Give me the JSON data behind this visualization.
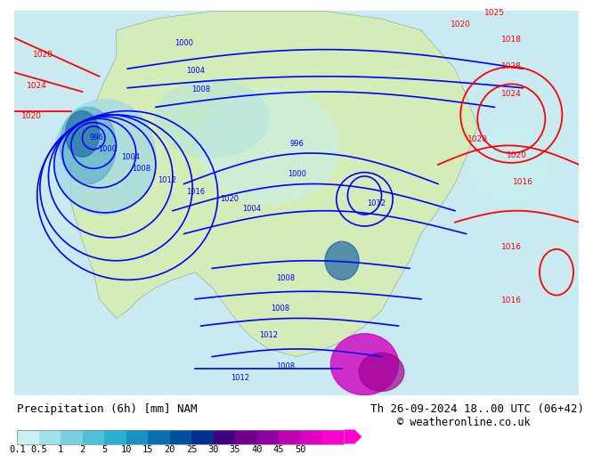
{
  "title_left": "Precipitation (6h) [mm] NAM",
  "title_right": "Th 26-09-2024 18..00 UTC (06+42)",
  "copyright": "© weatheronline.co.uk",
  "colorbar_levels": [
    0.1,
    0.5,
    1,
    2,
    5,
    10,
    15,
    20,
    25,
    30,
    35,
    40,
    45,
    50
  ],
  "colorbar_colors": [
    "#c8f0f0",
    "#a0e0e8",
    "#78d0e0",
    "#50c0d8",
    "#28b0d0",
    "#1890c0",
    "#0870b0",
    "#0050a0",
    "#003090",
    "#400080",
    "#700090",
    "#9000a0",
    "#c000b0",
    "#e000c0",
    "#ff00d0"
  ],
  "ocean_color": "#c8eaf0",
  "land_color": "#d4edb8",
  "label_fontsize": 9,
  "title_fontsize": 9
}
